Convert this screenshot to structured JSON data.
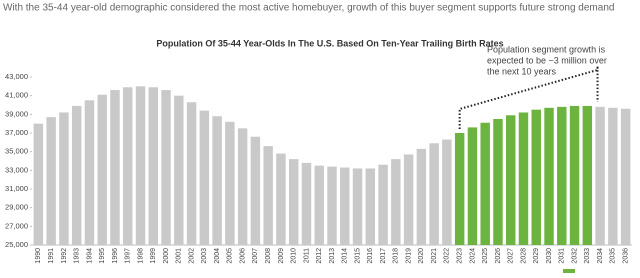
{
  "header": "With the 35-44 year-old demographic considered the most active homebuyer, growth of this buyer segment supports future strong demand",
  "chart_data": {
    "type": "bar",
    "title": "Population Of 35-44 Year-Olds In The U.S. Based On Ten-Year Trailing Birth Rates",
    "annotation": [
      "Population segment growth is",
      "expected to be ~3 million over",
      "the next 10 years"
    ],
    "categories": [
      "1990",
      "1991",
      "1992",
      "1993",
      "1994",
      "1995",
      "1996",
      "1997",
      "1998",
      "1999",
      "2000",
      "2001",
      "2002",
      "2003",
      "2004",
      "2005",
      "2006",
      "2007",
      "2008",
      "2009",
      "2010",
      "2011",
      "2012",
      "2013",
      "2014",
      "2015",
      "2016",
      "2017",
      "2018",
      "2019",
      "2020",
      "2021",
      "2022",
      "2023",
      "2024",
      "2025",
      "2026",
      "2027",
      "2028",
      "2029",
      "2030",
      "2031",
      "2032",
      "2033",
      "2034",
      "2035",
      "2036"
    ],
    "values": [
      38000,
      38700,
      39200,
      39900,
      40500,
      41100,
      41600,
      41900,
      42000,
      41900,
      41600,
      41000,
      40300,
      39400,
      38800,
      38200,
      37500,
      36600,
      35600,
      34800,
      34200,
      33800,
      33500,
      33400,
      33300,
      33200,
      33200,
      33600,
      34200,
      34700,
      35300,
      35900,
      36300,
      37000,
      37600,
      38100,
      38500,
      38900,
      39200,
      39500,
      39700,
      39800,
      39900,
      39900,
      39800,
      39700,
      39600
    ],
    "colors": [
      "#c9c9c9",
      "#c9c9c9",
      "#c9c9c9",
      "#c9c9c9",
      "#c9c9c9",
      "#c9c9c9",
      "#c9c9c9",
      "#c9c9c9",
      "#c9c9c9",
      "#c9c9c9",
      "#c9c9c9",
      "#c9c9c9",
      "#c9c9c9",
      "#c9c9c9",
      "#c9c9c9",
      "#c9c9c9",
      "#c9c9c9",
      "#c9c9c9",
      "#c9c9c9",
      "#c9c9c9",
      "#c9c9c9",
      "#c9c9c9",
      "#c9c9c9",
      "#c9c9c9",
      "#c9c9c9",
      "#c9c9c9",
      "#c9c9c9",
      "#c9c9c9",
      "#c9c9c9",
      "#c9c9c9",
      "#c9c9c9",
      "#c9c9c9",
      "#c9c9c9",
      "#6db33f",
      "#6db33f",
      "#6db33f",
      "#6db33f",
      "#6db33f",
      "#6db33f",
      "#6db33f",
      "#6db33f",
      "#6db33f",
      "#6db33f",
      "#6db33f",
      "#c9c9c9",
      "#c9c9c9",
      "#c9c9c9"
    ],
    "ylim": [
      25000,
      43000
    ],
    "yticks": [
      {
        "value": 25000,
        "label": "25,000"
      },
      {
        "value": 27000,
        "label": "27,000"
      },
      {
        "value": 29000,
        "label": "29,000"
      },
      {
        "value": 31000,
        "label": "31,000"
      },
      {
        "value": 33000,
        "label": "33,000"
      },
      {
        "value": 35000,
        "label": "35,000"
      },
      {
        "value": 37000,
        "label": "37,000"
      },
      {
        "value": 39000,
        "label": "39,000"
      },
      {
        "value": 41000,
        "label": "41,000"
      },
      {
        "value": 43000,
        "label": "43,000"
      }
    ]
  }
}
